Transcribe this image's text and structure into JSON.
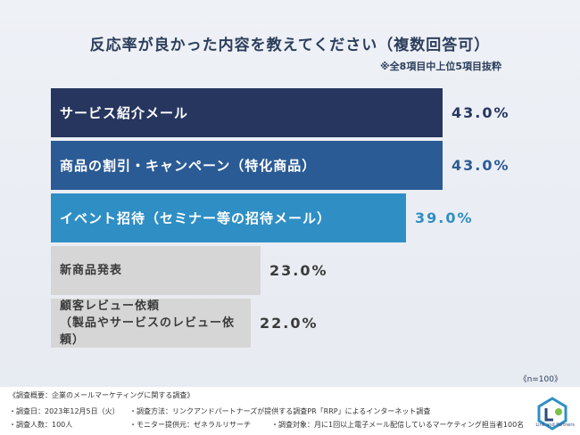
{
  "chart_data": {
    "type": "bar",
    "title": "反応率が良かった内容を教えてください（複数回答可）",
    "subtitle": "※全8項目中上位5項目抜粋",
    "categories": [
      "サービス紹介メール",
      "商品の割引・キャンペーン（特化商品）",
      "イベント招待（セミナー等の招待メール）",
      "新商品発表",
      "顧客レビュー依頼\n（製品やサービスのレビュー依頼）"
    ],
    "values": [
      43.0,
      43.0,
      39.0,
      23.0,
      22.0
    ],
    "value_labels": [
      "43.0%",
      "43.0%",
      "39.0%",
      "23.0%",
      "22.0%"
    ],
    "colors": [
      "#26365f",
      "#2b5b95",
      "#2f8fc4",
      "#d6d6d6",
      "#d6d6d6"
    ],
    "value_colors": [
      "#26365f",
      "#2b5b95",
      "#2f8fc4",
      "#3a3a3a",
      "#3a3a3a"
    ],
    "n_note": "《n=100》",
    "orientation": "horizontal"
  },
  "footer": {
    "line1": "《調査概要：企業のメールマーケティングに関する調査》",
    "date": "・調査日：2023年12月5日（火）",
    "method": "・調査方法：リンクアンドパートナーズが提供する調査PR「RRP」によるインターネット調査",
    "count": "・調査人数：100人",
    "provider": "・モニター提供元：ゼネラルリサーチ",
    "target": "・調査対象：月に1回以上電子メール配信しているマーケティング担当者100名",
    "logo_text": "Link and Partners"
  }
}
